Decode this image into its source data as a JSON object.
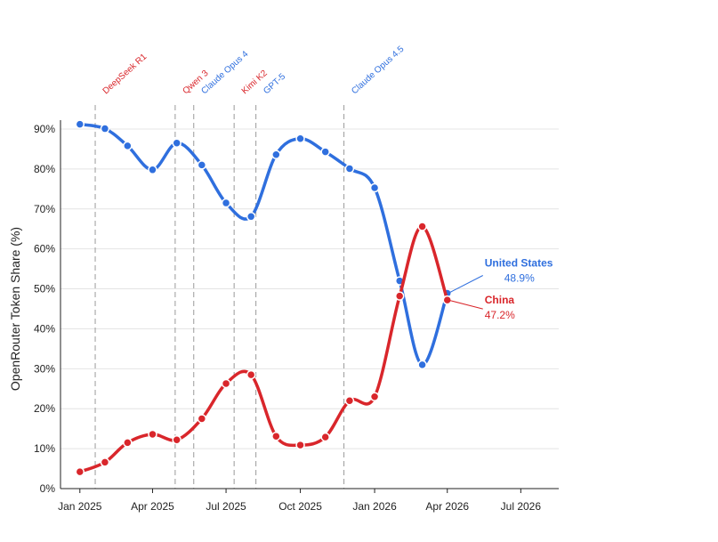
{
  "chart_data": {
    "type": "line",
    "ylabel": "OpenRouter Token Share (%)",
    "ylim": [
      0,
      90
    ],
    "yticks": [
      0,
      10,
      20,
      30,
      40,
      50,
      60,
      70,
      80,
      90
    ],
    "ytick_suffix": "%",
    "grid": true,
    "xticks": [
      {
        "date": "2025-01-01",
        "label": "Jan 2025"
      },
      {
        "date": "2025-04-01",
        "label": "Apr 2025"
      },
      {
        "date": "2025-07-01",
        "label": "Jul 2025"
      },
      {
        "date": "2025-10-01",
        "label": "Oct 2025"
      },
      {
        "date": "2026-01-01",
        "label": "Jan 2026"
      },
      {
        "date": "2026-04-01",
        "label": "Apr 2026"
      },
      {
        "date": "2026-07-01",
        "label": "Jul 2026"
      }
    ],
    "xlim": [
      "2024-12-08",
      "2026-08-17"
    ],
    "series": [
      {
        "name": "United States",
        "color": "#2f6fde",
        "end_label": "48.9%",
        "points": [
          {
            "x": "2025-01-01",
            "y": 91.2
          },
          {
            "x": "2025-02-01",
            "y": 90.1
          },
          {
            "x": "2025-03-01",
            "y": 85.8
          },
          {
            "x": "2025-04-01",
            "y": 79.8
          },
          {
            "x": "2025-05-01",
            "y": 86.5
          },
          {
            "x": "2025-06-01",
            "y": 81.0
          },
          {
            "x": "2025-07-01",
            "y": 71.5
          },
          {
            "x": "2025-08-01",
            "y": 68.1
          },
          {
            "x": "2025-09-01",
            "y": 83.6
          },
          {
            "x": "2025-10-01",
            "y": 87.6
          },
          {
            "x": "2025-11-01",
            "y": 84.3
          },
          {
            "x": "2025-12-01",
            "y": 80.1
          },
          {
            "x": "2026-01-01",
            "y": 75.3
          },
          {
            "x": "2026-02-01",
            "y": 52.0
          },
          {
            "x": "2026-03-01",
            "y": 31.0
          },
          {
            "x": "2026-04-01",
            "y": 48.9
          }
        ]
      },
      {
        "name": "China",
        "color": "#d9262b",
        "end_label": "47.2%",
        "points": [
          {
            "x": "2025-01-01",
            "y": 4.2
          },
          {
            "x": "2025-02-01",
            "y": 6.6
          },
          {
            "x": "2025-03-01",
            "y": 11.5
          },
          {
            "x": "2025-04-01",
            "y": 13.6
          },
          {
            "x": "2025-05-01",
            "y": 12.2
          },
          {
            "x": "2025-06-01",
            "y": 17.5
          },
          {
            "x": "2025-07-01",
            "y": 26.3
          },
          {
            "x": "2025-08-01",
            "y": 28.5
          },
          {
            "x": "2025-09-01",
            "y": 13.1
          },
          {
            "x": "2025-10-01",
            "y": 10.9
          },
          {
            "x": "2025-11-01",
            "y": 12.9
          },
          {
            "x": "2025-12-01",
            "y": 22.0
          },
          {
            "x": "2026-01-01",
            "y": 23.0
          },
          {
            "x": "2026-02-01",
            "y": 48.2
          },
          {
            "x": "2026-03-01",
            "y": 65.6
          },
          {
            "x": "2026-04-01",
            "y": 47.2
          }
        ]
      }
    ],
    "annotations": [
      {
        "label": "DeepSeek R1",
        "date": "2025-01-20",
        "color": "#d9262b"
      },
      {
        "label": "Qwen 3",
        "date": "2025-04-29",
        "color": "#d9262b"
      },
      {
        "label": "Claude Opus 4",
        "date": "2025-05-22",
        "color": "#2f6fde"
      },
      {
        "label": "Kimi K2",
        "date": "2025-07-11",
        "color": "#d9262b"
      },
      {
        "label": "GPT-5",
        "date": "2025-08-07",
        "color": "#2f6fde"
      },
      {
        "label": "Claude Opus 4.5",
        "date": "2025-11-24",
        "color": "#2f6fde"
      }
    ]
  }
}
